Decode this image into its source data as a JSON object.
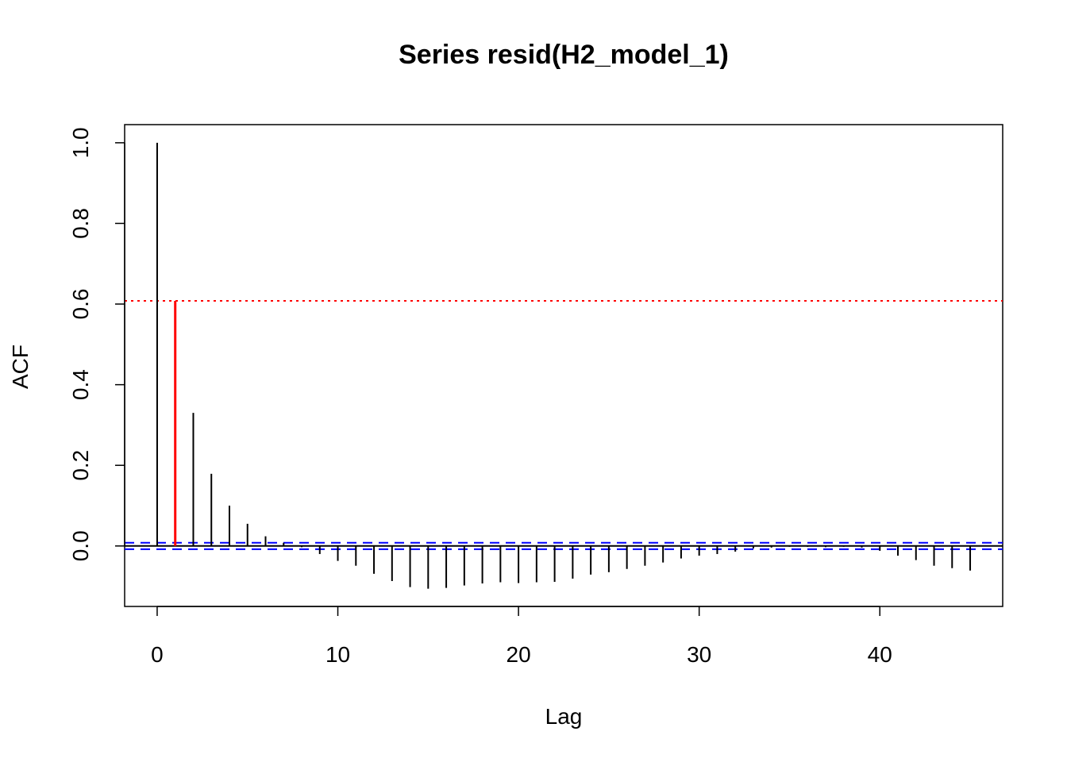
{
  "chart_data": {
    "type": "bar",
    "title": "Series resid(H2_model_1)",
    "xlabel": "Lag",
    "ylabel": "ACF",
    "xlim": [
      -1.8,
      46.8
    ],
    "ylim": [
      -0.15,
      1.045
    ],
    "x_ticks": [
      0,
      10,
      20,
      30,
      40
    ],
    "x_tick_labels": [
      "0",
      "10",
      "20",
      "30",
      "40"
    ],
    "y_ticks": [
      0.0,
      0.2,
      0.4,
      0.6,
      0.8,
      1.0
    ],
    "y_tick_labels": [
      "0.0",
      "0.2",
      "0.4",
      "0.6",
      "0.8",
      "1.0"
    ],
    "grid": false,
    "lags": [
      0,
      1,
      2,
      3,
      4,
      5,
      6,
      7,
      8,
      9,
      10,
      11,
      12,
      13,
      14,
      15,
      16,
      17,
      18,
      19,
      20,
      21,
      22,
      23,
      24,
      25,
      26,
      27,
      28,
      29,
      30,
      31,
      32,
      33,
      34,
      35,
      36,
      37,
      38,
      39,
      40,
      41,
      42,
      43,
      44,
      45
    ],
    "values": [
      1.0,
      0.608,
      0.33,
      0.179,
      0.1,
      0.055,
      0.024,
      0.008,
      -0.003,
      -0.02,
      -0.037,
      -0.049,
      -0.069,
      -0.087,
      -0.102,
      -0.106,
      -0.104,
      -0.098,
      -0.093,
      -0.09,
      -0.092,
      -0.09,
      -0.089,
      -0.081,
      -0.071,
      -0.065,
      -0.057,
      -0.049,
      -0.041,
      -0.031,
      -0.024,
      -0.02,
      -0.014,
      -0.006,
      -0.004,
      -0.002,
      -0.002,
      -0.003,
      -0.002,
      -0.004,
      -0.012,
      -0.024,
      -0.035,
      -0.049,
      -0.055,
      -0.061
    ],
    "highlight_lag": 1,
    "highlight_line": 0.608,
    "confidence_bound": 0.0079,
    "colors": {
      "bars": "#000000",
      "highlight": "#ff0000",
      "confidence": "#0000ff"
    }
  }
}
